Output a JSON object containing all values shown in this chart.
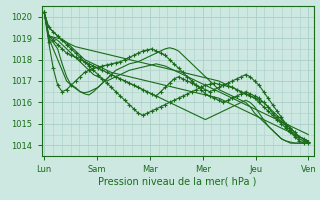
{
  "title": "",
  "xlabel": "Pression niveau de la mer( hPa )",
  "ylabel": "",
  "ylim": [
    1013.5,
    1020.5
  ],
  "yticks": [
    1014,
    1015,
    1016,
    1017,
    1018,
    1019,
    1020
  ],
  "xtick_labels": [
    "Lun",
    "Sam",
    "Mar",
    "Mer",
    "Jeu",
    "Ven"
  ],
  "xtick_positions": [
    0,
    1,
    2,
    3,
    4,
    5
  ],
  "bg_color": "#cce8e0",
  "grid_color": "#aacfc8",
  "line_color": "#1a6b1a",
  "series": [
    [
      1020.2,
      1019.5,
      1019.3,
      1019.1,
      1018.9,
      1018.8,
      1018.7,
      1018.6,
      1018.55,
      1018.5,
      1018.45,
      1018.4,
      1018.35,
      1018.3,
      1018.25,
      1018.2,
      1018.15,
      1018.1,
      1018.05,
      1018.0,
      1017.95,
      1017.9,
      1017.85,
      1017.8,
      1017.75,
      1017.7,
      1017.65,
      1017.6,
      1017.55,
      1017.5,
      1017.45,
      1017.4,
      1017.35,
      1017.3,
      1017.25,
      1017.2,
      1017.15,
      1017.1,
      1017.05,
      1017.0,
      1016.9,
      1016.8,
      1016.7,
      1016.6,
      1016.5,
      1016.4,
      1016.3,
      1016.2,
      1016.1,
      1016.0,
      1015.8,
      1015.6,
      1015.4,
      1015.2,
      1015.0,
      1014.8,
      1014.6,
      1014.4,
      1014.3,
      1014.2
    ],
    [
      1020.2,
      1019.1,
      1019.05,
      1019.0,
      1018.95,
      1018.8,
      1018.6,
      1018.4,
      1018.2,
      1018.0,
      1017.9,
      1017.8,
      1017.7,
      1017.6,
      1017.5,
      1017.4,
      1017.35,
      1017.3,
      1017.25,
      1017.2,
      1017.15,
      1017.1,
      1017.05,
      1017.0,
      1016.95,
      1016.9,
      1016.85,
      1016.8,
      1016.75,
      1016.7,
      1016.65,
      1016.6,
      1016.55,
      1016.5,
      1016.45,
      1016.4,
      1016.35,
      1016.3,
      1016.25,
      1016.2,
      1016.1,
      1016.0,
      1015.9,
      1015.8,
      1015.7,
      1015.6,
      1015.5,
      1015.4,
      1015.3,
      1015.2,
      1015.1,
      1015.0,
      1014.9,
      1014.8,
      1014.7,
      1014.6,
      1014.5,
      1014.4,
      1014.3,
      1014.2
    ],
    [
      1020.2,
      1019.1,
      1018.9,
      1018.7,
      1018.5,
      1018.3,
      1018.2,
      1018.1,
      1018.0,
      1017.9,
      1017.8,
      1017.7,
      1017.6,
      1017.5,
      1017.4,
      1017.3,
      1017.2,
      1017.1,
      1017.0,
      1016.9,
      1016.8,
      1016.7,
      1016.6,
      1016.5,
      1016.4,
      1016.3,
      1016.5,
      1016.7,
      1016.9,
      1017.1,
      1017.2,
      1017.1,
      1017.0,
      1016.9,
      1016.8,
      1016.7,
      1016.6,
      1016.5,
      1016.6,
      1016.7,
      1016.8,
      1016.9,
      1017.0,
      1017.1,
      1017.2,
      1017.3,
      1017.2,
      1017.0,
      1016.8,
      1016.5,
      1016.2,
      1015.9,
      1015.6,
      1015.3,
      1015.0,
      1014.8,
      1014.6,
      1014.4,
      1014.3,
      1014.15
    ],
    [
      1020.2,
      1019.0,
      1018.5,
      1018.0,
      1017.5,
      1017.0,
      1016.8,
      1016.7,
      1016.5,
      1016.45,
      1016.5,
      1016.6,
      1016.7,
      1016.9,
      1017.1,
      1017.3,
      1017.5,
      1017.6,
      1017.7,
      1017.8,
      1017.85,
      1017.9,
      1018.0,
      1018.1,
      1018.2,
      1018.3,
      1018.4,
      1018.5,
      1018.55,
      1018.5,
      1018.4,
      1018.2,
      1018.0,
      1017.8,
      1017.6,
      1017.4,
      1017.2,
      1017.0,
      1016.8,
      1016.6,
      1016.5,
      1016.4,
      1016.3,
      1016.2,
      1016.1,
      1016.0,
      1015.8,
      1015.5,
      1015.3,
      1015.1,
      1014.9,
      1014.7,
      1014.5,
      1014.3,
      1014.2,
      1014.15,
      1014.1,
      1014.1,
      1014.1,
      1014.1
    ],
    [
      1020.2,
      1018.8,
      1017.6,
      1016.8,
      1016.5,
      1016.6,
      1016.8,
      1017.0,
      1017.2,
      1017.4,
      1017.5,
      1017.6,
      1017.65,
      1017.7,
      1017.75,
      1017.8,
      1017.85,
      1017.9,
      1018.0,
      1018.1,
      1018.2,
      1018.3,
      1018.4,
      1018.45,
      1018.5,
      1018.4,
      1018.3,
      1018.2,
      1018.0,
      1017.8,
      1017.6,
      1017.4,
      1017.2,
      1017.0,
      1016.8,
      1016.6,
      1016.4,
      1016.3,
      1016.2,
      1016.1,
      1016.0,
      1016.1,
      1016.2,
      1016.3,
      1016.4,
      1016.5,
      1016.4,
      1016.3,
      1016.2,
      1016.0,
      1015.8,
      1015.5,
      1015.3,
      1015.1,
      1014.9,
      1014.7,
      1014.5,
      1014.3,
      1014.2,
      1014.15
    ],
    [
      1020.2,
      1019.0,
      1018.8,
      1018.5,
      1017.8,
      1017.2,
      1016.8,
      1016.65,
      1016.5,
      1016.4,
      1016.35,
      1016.5,
      1016.7,
      1016.9,
      1017.1,
      1017.3,
      1017.2,
      1017.1,
      1017.0,
      1016.9,
      1016.8,
      1016.7,
      1016.6,
      1016.5,
      1016.4,
      1016.3,
      1016.2,
      1016.1,
      1016.0,
      1015.9,
      1015.8,
      1015.7,
      1015.6,
      1015.5,
      1015.4,
      1015.3,
      1015.2,
      1015.3,
      1015.4,
      1015.5,
      1015.6,
      1015.7,
      1015.8,
      1015.9,
      1016.0,
      1016.1,
      1016.0,
      1015.8,
      1015.5,
      1015.2,
      1014.9,
      1014.7,
      1014.5,
      1014.3,
      1014.2,
      1014.1,
      1014.1,
      1014.1,
      1014.1,
      1014.1
    ],
    [
      1020.2,
      1019.1,
      1019.0,
      1018.9,
      1018.7,
      1018.5,
      1018.3,
      1018.1,
      1017.9,
      1017.7,
      1017.5,
      1017.3,
      1017.2,
      1017.1,
      1017.0,
      1017.1,
      1017.2,
      1017.3,
      1017.4,
      1017.5,
      1017.55,
      1017.6,
      1017.65,
      1017.7,
      1017.75,
      1017.8,
      1017.75,
      1017.7,
      1017.6,
      1017.5,
      1017.4,
      1017.3,
      1017.2,
      1017.1,
      1017.0,
      1016.9,
      1016.8,
      1016.7,
      1016.6,
      1016.5,
      1016.4,
      1016.3,
      1016.2,
      1016.1,
      1016.0,
      1015.9,
      1015.8,
      1015.7,
      1015.6,
      1015.5,
      1015.4,
      1015.3,
      1015.2,
      1015.1,
      1015.0,
      1014.9,
      1014.8,
      1014.7,
      1014.6,
      1014.5
    ],
    [
      1020.2,
      1019.5,
      1019.3,
      1019.1,
      1018.9,
      1018.7,
      1018.5,
      1018.3,
      1018.1,
      1017.9,
      1017.7,
      1017.5,
      1017.3,
      1017.1,
      1016.9,
      1016.7,
      1016.5,
      1016.3,
      1016.1,
      1015.9,
      1015.7,
      1015.5,
      1015.4,
      1015.5,
      1015.6,
      1015.7,
      1015.8,
      1015.9,
      1016.0,
      1016.1,
      1016.2,
      1016.3,
      1016.4,
      1016.5,
      1016.6,
      1016.7,
      1016.8,
      1016.85,
      1016.9,
      1016.85,
      1016.8,
      1016.75,
      1016.7,
      1016.6,
      1016.5,
      1016.4,
      1016.3,
      1016.2,
      1016.0,
      1015.8,
      1015.6,
      1015.4,
      1015.2,
      1015.0,
      1014.8,
      1014.6,
      1014.4,
      1014.2,
      1014.1,
      1014.1
    ]
  ],
  "marked_series_idx": [
    2,
    4,
    7
  ],
  "n_points": 60,
  "figsize": [
    3.2,
    2.0
  ],
  "dpi": 100
}
